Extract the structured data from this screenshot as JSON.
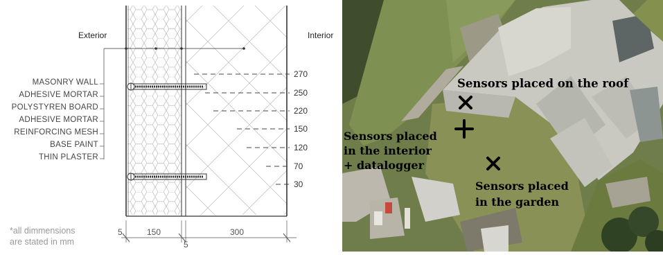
{
  "wall_section": {
    "exterior_label": "Exterior",
    "interior_label": "Interior",
    "layers": [
      "MASONRY WALL",
      "ADHESIVE MORTAR",
      "POLYSTYREN BOARD",
      "ADHESIVE MORTAR",
      "REINFORCING MESH",
      "BASE PAINT",
      "THIN PLASTER"
    ],
    "depths": [
      "270",
      "250",
      "220",
      "150",
      "120",
      "70",
      "30"
    ],
    "dimensions": {
      "d1": "5",
      "d2": "150",
      "d3": "300",
      "d4": "5"
    },
    "note": [
      "*all dimmensions",
      "are stated in mm"
    ]
  },
  "site_map": {
    "labels": {
      "roof": "Sensors placed on the roof",
      "interior": [
        "Sensors placed",
        "in the interior",
        "+ datalogger"
      ],
      "garden": [
        "Sensors placed",
        "in the garden"
      ]
    }
  }
}
